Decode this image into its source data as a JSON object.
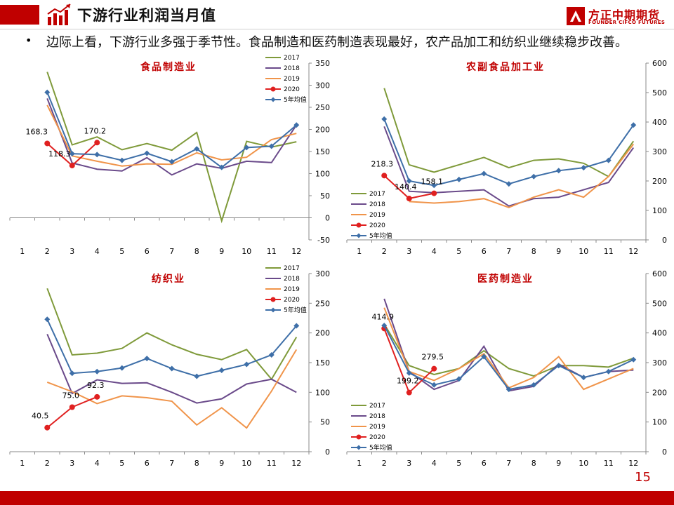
{
  "header": {
    "title": "下游行业利润当月值",
    "logo_cn": "方正中期期货",
    "logo_en": "FOUNDER CIFCO FUTURES"
  },
  "bullet": {
    "marker": "•",
    "text": "边际上看，下游行业多强于季节性。食品制造和医药制造表现最好，农产品加工和纺织业继续稳步改善。"
  },
  "page_number": "15",
  "colors": {
    "brand_red": "#c00000",
    "s2017": "#7f9a3a",
    "s2018": "#6a4a8a",
    "s2019": "#f0944a",
    "s2020": "#e02020",
    "s5yr": "#3e6fa8"
  },
  "chart_data": [
    {
      "type": "line",
      "title": "食品制造业",
      "categories": [
        "1",
        "2",
        "3",
        "4",
        "5",
        "6",
        "7",
        "8",
        "9",
        "10",
        "11",
        "12"
      ],
      "ylim": [
        -50,
        350
      ],
      "yticks": [
        -50,
        0,
        50,
        100,
        150,
        200,
        250,
        300,
        350
      ],
      "y_axis_side": "right",
      "legend_position": "top-right",
      "grid": false,
      "series": [
        {
          "name": "2017",
          "values": [
            null,
            330,
            165,
            183,
            154,
            168,
            153,
            193,
            -7,
            173,
            160,
            172
          ]
        },
        {
          "name": "2018",
          "values": [
            null,
            270,
            124,
            110,
            106,
            136,
            97,
            122,
            112,
            128,
            125,
            210
          ]
        },
        {
          "name": "2019",
          "values": [
            null,
            255,
            140,
            128,
            117,
            122,
            121,
            147,
            131,
            137,
            177,
            191
          ]
        },
        {
          "name": "2020",
          "values": [
            null,
            168.3,
            118.3,
            170.2,
            null,
            null,
            null,
            null,
            null,
            null,
            null,
            null
          ]
        },
        {
          "name": "5年均值",
          "values": [
            null,
            284,
            145,
            143,
            130,
            146,
            127,
            156,
            114,
            159,
            162,
            210
          ]
        }
      ],
      "labels": [
        {
          "series": "2020",
          "index": 1,
          "text": "168.3"
        },
        {
          "series": "2020",
          "index": 2,
          "text": "118.3"
        },
        {
          "series": "2020",
          "index": 3,
          "text": "170.2"
        }
      ]
    },
    {
      "type": "line",
      "title": "农副食品加工业",
      "categories": [
        "1",
        "2",
        "3",
        "4",
        "5",
        "6",
        "7",
        "8",
        "9",
        "10",
        "11",
        "12"
      ],
      "ylim": [
        0,
        600
      ],
      "yticks": [
        0,
        100,
        200,
        300,
        400,
        500,
        600
      ],
      "y_axis_side": "right",
      "legend_position": "bottom-left",
      "grid": false,
      "series": [
        {
          "name": "2017",
          "values": [
            null,
            515,
            255,
            230,
            255,
            280,
            245,
            270,
            275,
            260,
            215,
            335
          ]
        },
        {
          "name": "2018",
          "values": [
            null,
            385,
            165,
            160,
            165,
            170,
            115,
            140,
            145,
            170,
            195,
            313
          ]
        },
        {
          "name": "2019",
          "values": [
            null,
            null,
            130,
            125,
            130,
            140,
            110,
            145,
            170,
            145,
            215,
            325
          ]
        },
        {
          "name": "2020",
          "values": [
            null,
            218.3,
            140.4,
            158.1,
            null,
            null,
            null,
            null,
            null,
            null,
            null,
            null
          ]
        },
        {
          "name": "5年均值",
          "values": [
            null,
            410,
            200,
            185,
            205,
            225,
            190,
            215,
            235,
            245,
            270,
            390
          ]
        }
      ],
      "labels": [
        {
          "series": "2020",
          "index": 1,
          "text": "218.3"
        },
        {
          "series": "2020",
          "index": 2,
          "text": "140.4"
        },
        {
          "series": "2020",
          "index": 3,
          "text": "158.1"
        }
      ]
    },
    {
      "type": "line",
      "title": "纺织业",
      "categories": [
        "1",
        "2",
        "3",
        "4",
        "5",
        "6",
        "7",
        "8",
        "9",
        "10",
        "11",
        "12"
      ],
      "ylim": [
        0,
        300
      ],
      "yticks": [
        0,
        50,
        100,
        150,
        200,
        250,
        300
      ],
      "y_axis_side": "right",
      "legend_position": "top-right",
      "grid": false,
      "series": [
        {
          "name": "2017",
          "values": [
            null,
            275,
            163,
            166,
            174,
            200,
            180,
            164,
            155,
            172,
            122,
            193
          ]
        },
        {
          "name": "2018",
          "values": [
            null,
            198,
            98,
            121,
            115,
            116,
            100,
            82,
            89,
            114,
            122,
            100
          ]
        },
        {
          "name": "2019",
          "values": [
            null,
            117,
            101,
            81,
            94,
            91,
            85,
            45,
            74,
            40,
            102,
            172
          ]
        },
        {
          "name": "2020",
          "values": [
            null,
            40.5,
            75.0,
            92.3,
            null,
            null,
            null,
            null,
            null,
            null,
            null,
            null
          ]
        },
        {
          "name": "5年均值",
          "values": [
            null,
            223,
            132,
            135,
            141,
            157,
            140,
            127,
            137,
            147,
            163,
            212
          ]
        }
      ],
      "labels": [
        {
          "series": "2020",
          "index": 1,
          "text": "40.5"
        },
        {
          "series": "2020",
          "index": 2,
          "text": "75.0"
        },
        {
          "series": "2020",
          "index": 3,
          "text": "92.3"
        }
      ]
    },
    {
      "type": "line",
      "title": "医药制造业",
      "categories": [
        "1",
        "2",
        "3",
        "4",
        "5",
        "6",
        "7",
        "8",
        "9",
        "10",
        "11",
        "12"
      ],
      "ylim": [
        0,
        600
      ],
      "yticks": [
        0,
        100,
        200,
        300,
        400,
        500,
        600
      ],
      "y_axis_side": "right",
      "legend_position": "bottom-left",
      "grid": false,
      "series": [
        {
          "name": "2017",
          "values": [
            null,
            430,
            290,
            260,
            280,
            340,
            280,
            255,
            290,
            290,
            285,
            315
          ]
        },
        {
          "name": "2018",
          "values": [
            null,
            515,
            270,
            210,
            240,
            355,
            205,
            220,
            295,
            250,
            270,
            275
          ]
        },
        {
          "name": "2019",
          "values": [
            null,
            485,
            270,
            240,
            280,
            330,
            215,
            250,
            320,
            210,
            245,
            280
          ]
        },
        {
          "name": "2020",
          "values": [
            null,
            414.9,
            199.2,
            279.5,
            null,
            null,
            null,
            null,
            null,
            null,
            null,
            null
          ]
        },
        {
          "name": "5年均值",
          "values": [
            null,
            425,
            265,
            225,
            245,
            320,
            210,
            225,
            290,
            250,
            270,
            310
          ]
        }
      ],
      "labels": [
        {
          "series": "2020",
          "index": 1,
          "text": "414.9"
        },
        {
          "series": "2020",
          "index": 2,
          "text": "199.2"
        },
        {
          "series": "2020",
          "index": 3,
          "text": "279.5"
        }
      ]
    }
  ]
}
